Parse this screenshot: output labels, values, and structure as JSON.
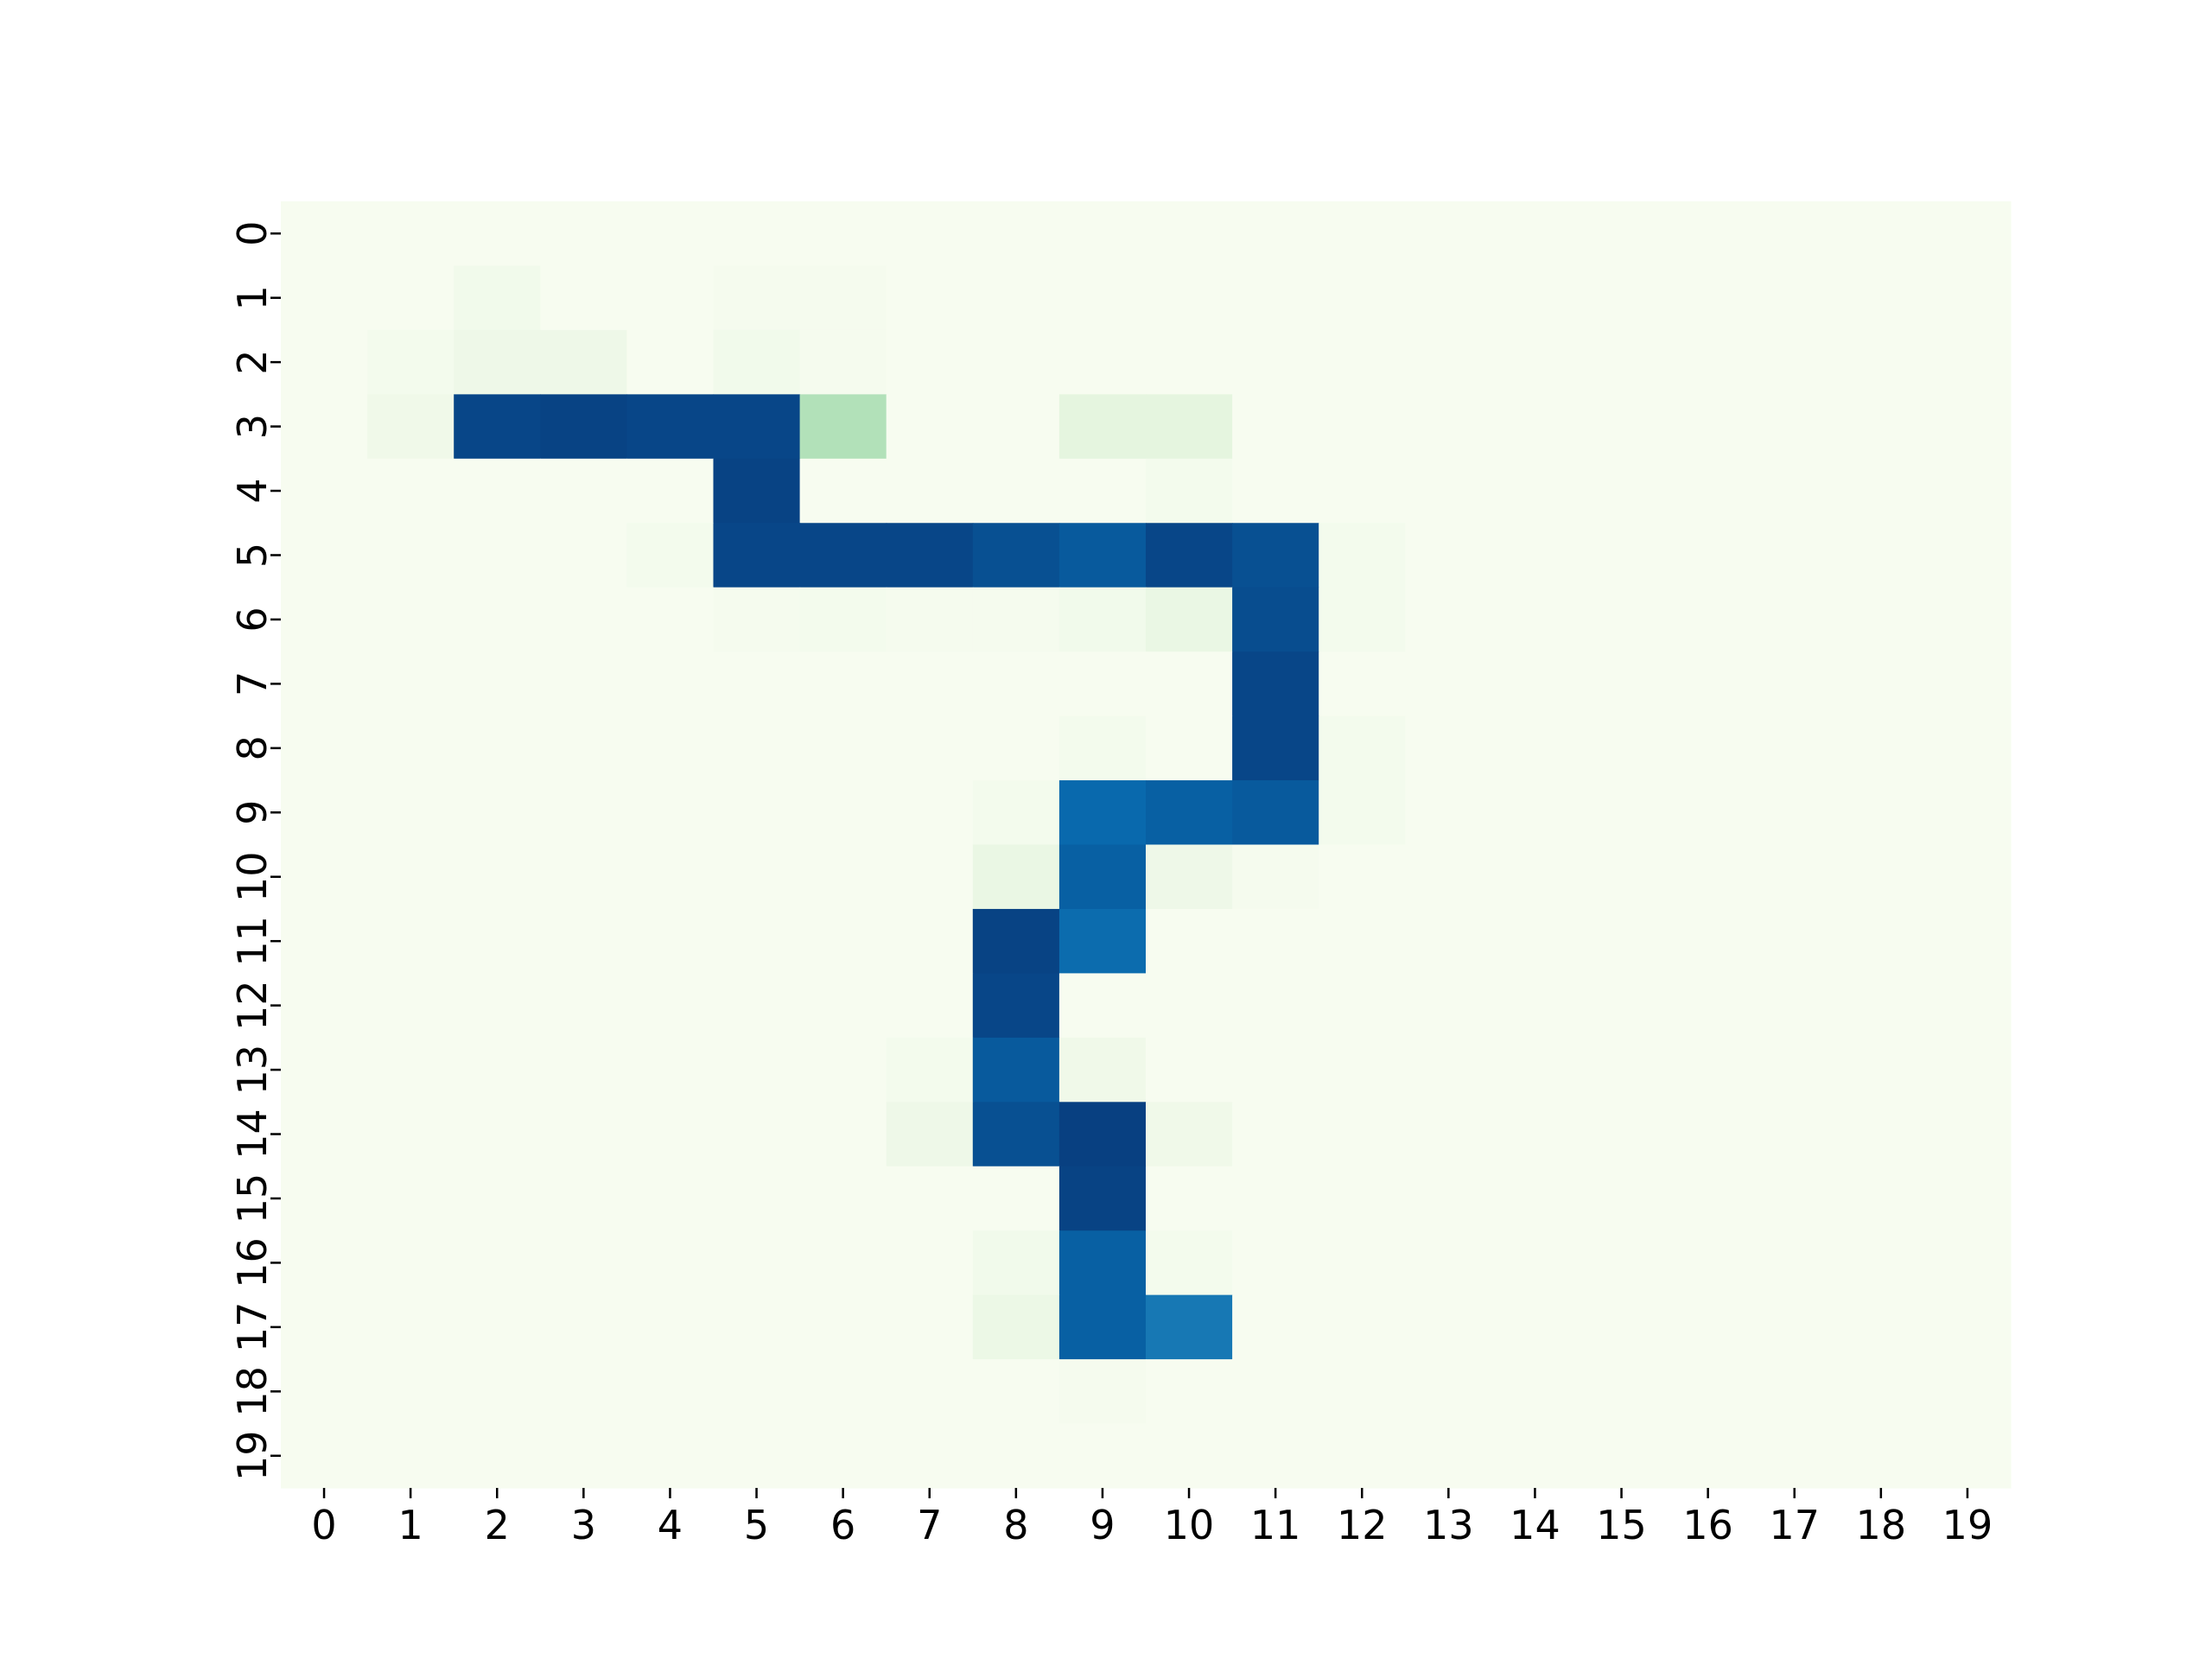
{
  "chart_data": {
    "type": "heatmap",
    "title": "",
    "xlabel": "",
    "ylabel": "",
    "x_tick_labels": [
      "0",
      "1",
      "2",
      "3",
      "4",
      "5",
      "6",
      "7",
      "8",
      "9",
      "10",
      "11",
      "12",
      "13",
      "14",
      "15",
      "16",
      "17",
      "18",
      "19"
    ],
    "y_tick_labels": [
      "0",
      "1",
      "2",
      "3",
      "4",
      "5",
      "6",
      "7",
      "8",
      "9",
      "10",
      "11",
      "12",
      "13",
      "14",
      "15",
      "16",
      "17",
      "18",
      "19"
    ],
    "colormap": "GnBu",
    "colorbar": false,
    "value_range": [
      0,
      1
    ],
    "values": [
      [
        0,
        0,
        0,
        0,
        0,
        0,
        0,
        0,
        0,
        0,
        0,
        0,
        0,
        0,
        0,
        0,
        0,
        0,
        0,
        0
      ],
      [
        0,
        0,
        0.03,
        0,
        0,
        0.01,
        0.01,
        0,
        0,
        0,
        0,
        0,
        0,
        0,
        0,
        0,
        0,
        0,
        0,
        0
      ],
      [
        0,
        0.02,
        0.05,
        0.05,
        0,
        0.03,
        0.01,
        0,
        0,
        0,
        0,
        0,
        0,
        0,
        0,
        0,
        0,
        0,
        0,
        0
      ],
      [
        0,
        0.04,
        0.98,
        0.99,
        0.98,
        0.98,
        0.34,
        0,
        0,
        0.1,
        0.1,
        0,
        0,
        0,
        0,
        0,
        0,
        0,
        0,
        0
      ],
      [
        0,
        0,
        0,
        0,
        0,
        0.99,
        0,
        0,
        0,
        0,
        0.02,
        0,
        0,
        0,
        0,
        0,
        0,
        0,
        0,
        0
      ],
      [
        0,
        0,
        0,
        0,
        0.02,
        0.98,
        0.98,
        0.98,
        0.95,
        0.92,
        0.98,
        0.95,
        0.02,
        0,
        0,
        0,
        0,
        0,
        0,
        0
      ],
      [
        0,
        0,
        0,
        0,
        0,
        0.01,
        0.02,
        0.01,
        0.01,
        0.03,
        0.07,
        0.96,
        0.02,
        0,
        0,
        0,
        0,
        0,
        0,
        0
      ],
      [
        0,
        0,
        0,
        0,
        0,
        0,
        0,
        0,
        0,
        0,
        0,
        0.98,
        0,
        0,
        0,
        0,
        0,
        0,
        0,
        0
      ],
      [
        0,
        0,
        0,
        0,
        0,
        0,
        0,
        0,
        0,
        0.02,
        0,
        0.98,
        0.02,
        0,
        0,
        0,
        0,
        0,
        0,
        0
      ],
      [
        0,
        0,
        0,
        0,
        0,
        0,
        0,
        0,
        0.02,
        0.87,
        0.9,
        0.92,
        0.02,
        0,
        0,
        0,
        0,
        0,
        0,
        0
      ],
      [
        0,
        0,
        0,
        0,
        0,
        0,
        0,
        0,
        0.07,
        0.9,
        0.05,
        0.01,
        0,
        0,
        0,
        0,
        0,
        0,
        0,
        0
      ],
      [
        0,
        0,
        0,
        0,
        0,
        0,
        0,
        0,
        0.99,
        0.86,
        0,
        0,
        0,
        0,
        0,
        0,
        0,
        0,
        0,
        0
      ],
      [
        0,
        0,
        0,
        0,
        0,
        0,
        0,
        0,
        0.98,
        0,
        0,
        0,
        0,
        0,
        0,
        0,
        0,
        0,
        0,
        0
      ],
      [
        0,
        0,
        0,
        0,
        0,
        0,
        0,
        0.02,
        0.92,
        0.04,
        0,
        0,
        0,
        0,
        0,
        0,
        0,
        0,
        0,
        0
      ],
      [
        0,
        0,
        0,
        0,
        0,
        0,
        0,
        0.05,
        0.95,
        1.0,
        0.04,
        0,
        0,
        0,
        0,
        0,
        0,
        0,
        0,
        0
      ],
      [
        0,
        0,
        0,
        0,
        0,
        0,
        0,
        0,
        0,
        0.99,
        0,
        0,
        0,
        0,
        0,
        0,
        0,
        0,
        0,
        0
      ],
      [
        0,
        0,
        0,
        0,
        0,
        0,
        0,
        0,
        0.03,
        0.9,
        0.02,
        0,
        0,
        0,
        0,
        0,
        0,
        0,
        0,
        0
      ],
      [
        0,
        0,
        0,
        0,
        0,
        0,
        0,
        0,
        0.06,
        0.9,
        0.82,
        0,
        0,
        0,
        0,
        0,
        0,
        0,
        0,
        0
      ],
      [
        0,
        0,
        0,
        0,
        0,
        0,
        0,
        0,
        0,
        0.01,
        0,
        0,
        0,
        0,
        0,
        0,
        0,
        0,
        0,
        0
      ],
      [
        0,
        0,
        0,
        0,
        0,
        0,
        0,
        0,
        0,
        0,
        0,
        0,
        0,
        0,
        0,
        0,
        0,
        0,
        0,
        0
      ]
    ]
  }
}
